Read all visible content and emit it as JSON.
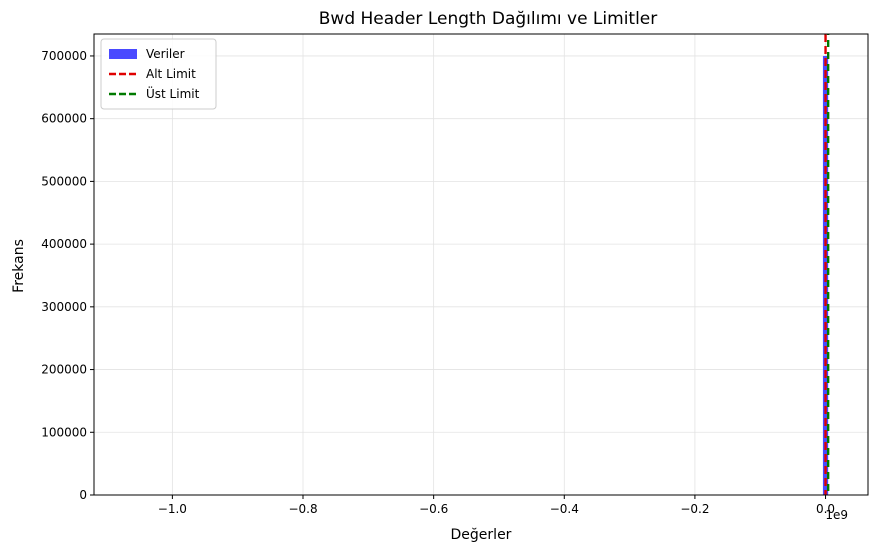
{
  "chart_data": {
    "type": "bar",
    "title": "Bwd Header Length Dağılımı ve Limitler",
    "xlabel": "Değerler",
    "ylabel": "Frekans",
    "x_offset_label": "1e9",
    "xlim": [
      -1.12,
      0.065
    ],
    "ylim": [
      0,
      735000
    ],
    "x_scale_multiplier": 1000000000,
    "x_ticks": [
      -1.0,
      -0.8,
      -0.6,
      -0.4,
      -0.2,
      0.0
    ],
    "x_tick_labels": [
      "−1.0",
      "−0.8",
      "−0.6",
      "−0.4",
      "−0.2",
      "0.0"
    ],
    "y_ticks": [
      0,
      100000,
      200000,
      300000,
      400000,
      500000,
      600000,
      700000
    ],
    "y_tick_labels": [
      "0",
      "100000",
      "200000",
      "300000",
      "400000",
      "500000",
      "600000",
      "700000"
    ],
    "grid": true,
    "legend_position": "top-left",
    "series": [
      {
        "name": "Veriler",
        "kind": "histogram",
        "color": "#4a4aff",
        "bins": [
          {
            "x0": -0.004,
            "x1": 0.004,
            "value": 700000
          }
        ]
      },
      {
        "name": "Alt Limit",
        "kind": "vline",
        "color": "#e00000",
        "x": 0.0
      },
      {
        "name": "Üst Limit",
        "kind": "vline",
        "color": "#007a00",
        "x": 0.004
      }
    ]
  }
}
